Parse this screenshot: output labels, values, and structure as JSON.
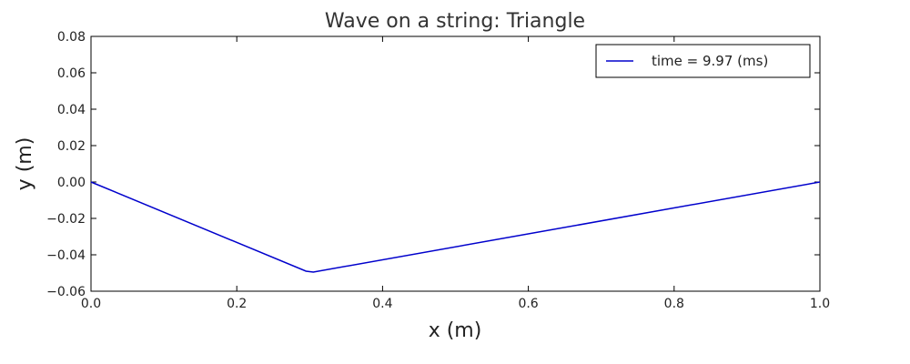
{
  "chart_data": {
    "type": "line",
    "title": "Wave on a string: Triangle",
    "xlabel": "x (m)",
    "ylabel": "y (m)",
    "xlim": [
      0.0,
      1.0
    ],
    "ylim": [
      -0.06,
      0.08
    ],
    "xticks": [
      0.0,
      0.2,
      0.4,
      0.6,
      0.8,
      1.0
    ],
    "xtick_labels": [
      "0.0",
      "0.2",
      "0.4",
      "0.6",
      "0.8",
      "1.0"
    ],
    "yticks": [
      -0.06,
      -0.04,
      -0.02,
      0.0,
      0.02,
      0.04,
      0.06,
      0.08
    ],
    "ytick_labels": [
      "−0.06",
      "−0.04",
      "−0.02",
      "0.00",
      "0.02",
      "0.04",
      "0.06",
      "0.08"
    ],
    "grid": false,
    "legend_position": "top-right",
    "series": [
      {
        "name": "time = 9.97 (ms)",
        "color": "#0000cc",
        "x": [
          0.0,
          0.295,
          0.305,
          1.0
        ],
        "y": [
          0.0,
          -0.049,
          -0.0495,
          0.0
        ]
      }
    ]
  }
}
